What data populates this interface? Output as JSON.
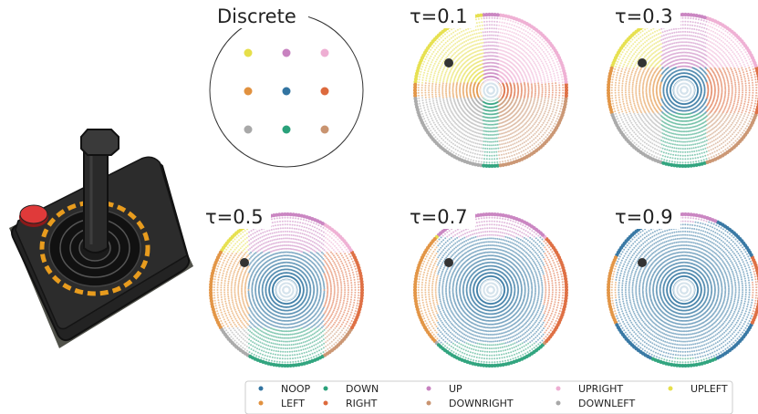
{
  "panels": [
    {
      "title": "Discrete"
    },
    {
      "title": "τ=0.1"
    },
    {
      "title": "τ=0.3"
    },
    {
      "title": "τ=0.5"
    },
    {
      "title": "τ=0.7"
    },
    {
      "title": "τ=0.9"
    }
  ],
  "legend": [
    {
      "label": "NOOP",
      "color": "#3274a1"
    },
    {
      "label": "LEFT",
      "color": "#e1913f"
    },
    {
      "label": "DOWN",
      "color": "#2aa17a"
    },
    {
      "label": "RIGHT",
      "color": "#dd6a3d"
    },
    {
      "label": "UP",
      "color": "#c882c0"
    },
    {
      "label": "DOWNRIGHT",
      "color": "#c99470"
    },
    {
      "label": "UPRIGHT",
      "color": "#eeaed3"
    },
    {
      "label": "DOWNLEFT",
      "color": "#a8a8a8"
    },
    {
      "label": "UPLEFT",
      "color": "#e6df4a"
    }
  ],
  "image_description": {
    "device": "joystick-controller",
    "icon": "atari-style-joystick-icon"
  }
}
